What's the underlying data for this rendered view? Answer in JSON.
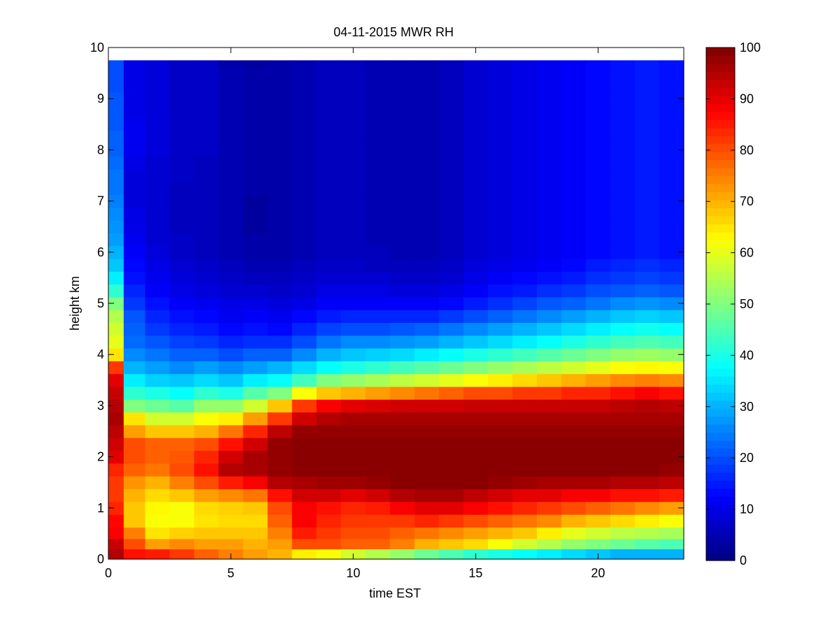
{
  "chart_data": {
    "type": "heatmap",
    "title": "04-11-2015 MWR RH",
    "xlabel": "time EST",
    "ylabel": "height km",
    "xlim": [
      0,
      23.5
    ],
    "ylim": [
      0,
      10
    ],
    "xticks": [
      0,
      5,
      10,
      15,
      20
    ],
    "yticks": [
      0,
      1,
      2,
      3,
      4,
      5,
      6,
      7,
      8,
      9,
      10
    ],
    "colorbar": {
      "min": 0,
      "max": 100,
      "ticks": [
        0,
        10,
        20,
        30,
        40,
        50,
        60,
        70,
        80,
        90,
        100
      ],
      "colormap": "jet"
    },
    "grid": false,
    "time_hours": [
      0.25,
      1,
      2,
      3,
      4,
      5,
      6,
      7,
      8,
      9,
      10,
      11,
      12,
      13,
      14,
      15,
      16,
      17,
      18,
      19,
      20,
      21,
      22,
      23
    ],
    "heights_km": [
      0.1,
      0.3,
      0.5,
      0.75,
      1.0,
      1.25,
      1.5,
      1.75,
      2.0,
      2.25,
      2.5,
      2.75,
      3.0,
      3.25,
      3.5,
      3.75,
      4.0,
      4.25,
      4.5,
      4.75,
      5.0,
      5.25,
      5.5,
      5.75,
      6.0,
      6.25,
      6.5,
      6.75,
      7.0,
      7.25,
      7.5,
      7.75,
      8.0,
      8.25,
      8.5,
      8.75,
      9.0,
      9.25,
      9.5,
      9.75
    ],
    "rh_percent_profiles": [
      [
        95,
        93,
        88,
        87,
        84,
        82,
        82,
        84,
        90,
        92,
        94,
        96,
        95,
        93,
        90,
        82,
        65,
        60,
        58,
        55,
        50,
        42,
        36,
        32,
        30,
        28,
        27,
        26,
        25,
        24,
        24,
        23,
        22,
        22,
        21,
        21,
        21,
        20,
        20,
        20
      ],
      [
        86,
        80,
        75,
        68,
        68,
        70,
        73,
        78,
        80,
        80,
        72,
        65,
        50,
        42,
        36,
        30,
        26,
        23,
        22,
        21,
        18,
        16,
        14,
        13,
        12,
        11,
        10,
        10,
        9,
        9,
        9,
        10,
        11,
        11,
        11,
        10,
        10,
        10,
        10,
        10
      ],
      [
        85,
        72,
        65,
        62,
        63,
        66,
        70,
        76,
        78,
        78,
        68,
        58,
        48,
        40,
        33,
        28,
        24,
        21,
        18,
        16,
        14,
        12,
        11,
        10,
        9,
        8,
        8,
        8,
        8,
        8,
        8,
        8,
        9,
        9,
        9,
        9,
        9,
        9,
        9,
        9
      ],
      [
        82,
        74,
        67,
        62,
        62,
        68,
        75,
        80,
        79,
        78,
        68,
        58,
        46,
        38,
        32,
        26,
        22,
        19,
        16,
        14,
        12,
        10,
        9,
        8,
        7,
        7,
        6,
        6,
        6,
        6,
        7,
        7,
        7,
        7,
        7,
        7,
        7,
        7,
        7,
        7
      ],
      [
        78,
        72,
        68,
        65,
        66,
        72,
        80,
        86,
        84,
        80,
        70,
        62,
        52,
        42,
        34,
        28,
        22,
        18,
        15,
        13,
        11,
        9,
        8,
        7,
        6,
        6,
        6,
        6,
        6,
        6,
        6,
        6,
        7,
        7,
        7,
        7,
        7,
        7,
        7,
        7
      ],
      [
        75,
        72,
        68,
        66,
        67,
        74,
        85,
        95,
        92,
        86,
        76,
        64,
        52,
        40,
        32,
        26,
        20,
        16,
        13,
        11,
        10,
        8,
        7,
        6,
        5,
        5,
        5,
        5,
        5,
        5,
        5,
        5,
        5,
        5,
        5,
        5,
        5,
        5,
        5,
        4
      ],
      [
        72,
        70,
        68,
        66,
        68,
        76,
        88,
        96,
        96,
        92,
        84,
        72,
        58,
        46,
        36,
        28,
        22,
        17,
        14,
        12,
        10,
        8,
        6,
        5,
        4,
        4,
        3,
        3,
        3,
        4,
        4,
        4,
        4,
        4,
        4,
        4,
        4,
        4,
        4,
        3
      ],
      [
        70,
        72,
        75,
        78,
        80,
        86,
        95,
        98,
        98,
        98,
        94,
        82,
        68,
        50,
        38,
        30,
        22,
        17,
        13,
        11,
        9,
        7,
        6,
        5,
        4,
        4,
        4,
        4,
        4,
        4,
        4,
        4,
        4,
        4,
        4,
        4,
        4,
        4,
        4,
        4
      ],
      [
        64,
        80,
        85,
        88,
        88,
        92,
        96,
        99,
        99,
        99,
        98,
        92,
        82,
        62,
        44,
        34,
        26,
        20,
        16,
        13,
        10,
        8,
        7,
        6,
        5,
        5,
        5,
        5,
        5,
        5,
        5,
        5,
        5,
        5,
        5,
        5,
        5,
        5,
        5,
        5
      ],
      [
        62,
        80,
        82,
        84,
        86,
        92,
        97,
        99,
        99,
        99,
        98,
        95,
        88,
        68,
        50,
        38,
        30,
        24,
        19,
        15,
        12,
        10,
        8,
        7,
        6,
        6,
        6,
        6,
        6,
        6,
        6,
        6,
        6,
        6,
        6,
        6,
        6,
        6,
        6,
        6
      ],
      [
        58,
        78,
        80,
        82,
        84,
        90,
        97,
        99,
        99,
        99,
        98,
        96,
        90,
        70,
        52,
        40,
        32,
        26,
        20,
        16,
        12,
        10,
        8,
        7,
        6,
        6,
        6,
        6,
        6,
        6,
        6,
        6,
        6,
        6,
        6,
        6,
        6,
        6,
        6,
        6
      ],
      [
        55,
        78,
        80,
        82,
        85,
        92,
        98,
        99,
        99,
        99,
        98,
        96,
        91,
        72,
        54,
        42,
        33,
        26,
        20,
        16,
        12,
        10,
        8,
        6,
        6,
        5,
        5,
        5,
        5,
        5,
        5,
        5,
        5,
        5,
        5,
        5,
        5,
        5,
        5,
        5
      ],
      [
        52,
        75,
        78,
        82,
        88,
        95,
        99,
        99,
        99,
        99,
        98,
        96,
        92,
        74,
        56,
        44,
        34,
        27,
        21,
        16,
        12,
        9,
        7,
        6,
        5,
        5,
        5,
        5,
        5,
        5,
        5,
        5,
        5,
        5,
        5,
        5,
        5,
        5,
        5,
        5
      ],
      [
        48,
        70,
        76,
        84,
        90,
        96,
        99,
        99,
        99,
        99,
        98,
        96,
        92,
        76,
        58,
        46,
        36,
        28,
        22,
        16,
        12,
        9,
        7,
        6,
        5,
        5,
        5,
        5,
        5,
        5,
        5,
        5,
        5,
        5,
        5,
        5,
        5,
        5,
        5,
        5
      ],
      [
        45,
        68,
        74,
        82,
        90,
        96,
        99,
        99,
        99,
        99,
        98,
        96,
        92,
        78,
        60,
        48,
        38,
        30,
        24,
        18,
        13,
        10,
        8,
        7,
        6,
        6,
        6,
        6,
        6,
        6,
        6,
        6,
        6,
        6,
        6,
        6,
        6,
        6,
        6,
        6
      ],
      [
        42,
        66,
        72,
        80,
        88,
        94,
        99,
        99,
        99,
        99,
        98,
        96,
        93,
        80,
        62,
        50,
        40,
        32,
        26,
        20,
        15,
        12,
        10,
        9,
        8,
        8,
        8,
        8,
        8,
        8,
        8,
        8,
        8,
        8,
        8,
        8,
        8,
        8,
        8,
        8
      ],
      [
        40,
        62,
        70,
        78,
        86,
        92,
        98,
        99,
        99,
        99,
        98,
        96,
        93,
        80,
        64,
        52,
        42,
        34,
        28,
        22,
        17,
        14,
        12,
        10,
        9,
        9,
        9,
        9,
        9,
        9,
        9,
        9,
        9,
        9,
        9,
        9,
        9,
        9,
        9,
        9
      ],
      [
        38,
        58,
        68,
        76,
        84,
        90,
        97,
        99,
        99,
        99,
        98,
        96,
        93,
        82,
        66,
        54,
        44,
        36,
        30,
        24,
        19,
        15,
        13,
        11,
        10,
        10,
        10,
        10,
        10,
        10,
        10,
        10,
        10,
        10,
        10,
        10,
        10,
        10,
        10,
        10
      ],
      [
        36,
        55,
        64,
        74,
        82,
        90,
        96,
        99,
        99,
        99,
        98,
        96,
        93,
        82,
        68,
        56,
        46,
        38,
        32,
        26,
        21,
        17,
        14,
        12,
        11,
        11,
        11,
        11,
        11,
        11,
        11,
        11,
        11,
        11,
        11,
        11,
        11,
        11,
        11,
        11
      ],
      [
        34,
        52,
        60,
        70,
        80,
        88,
        96,
        99,
        99,
        99,
        98,
        96,
        93,
        84,
        70,
        58,
        48,
        40,
        34,
        28,
        22,
        18,
        15,
        13,
        12,
        12,
        12,
        12,
        12,
        12,
        12,
        12,
        12,
        12,
        12,
        12,
        12,
        12,
        12,
        12
      ],
      [
        32,
        50,
        58,
        68,
        78,
        88,
        96,
        99,
        99,
        99,
        98,
        96,
        93,
        84,
        72,
        60,
        50,
        42,
        36,
        30,
        24,
        20,
        17,
        15,
        13,
        13,
        13,
        13,
        13,
        13,
        13,
        13,
        13,
        13,
        13,
        13,
        13,
        13,
        13,
        13
      ],
      [
        30,
        48,
        56,
        66,
        76,
        86,
        95,
        99,
        99,
        99,
        98,
        96,
        94,
        86,
        74,
        62,
        52,
        44,
        38,
        32,
        26,
        21,
        18,
        16,
        14,
        14,
        14,
        14,
        14,
        14,
        14,
        14,
        14,
        14,
        14,
        14,
        14,
        14,
        14,
        14
      ],
      [
        30,
        46,
        55,
        64,
        74,
        86,
        95,
        99,
        99,
        99,
        98,
        96,
        95,
        88,
        75,
        63,
        53,
        45,
        39,
        33,
        27,
        22,
        19,
        17,
        15,
        15,
        15,
        15,
        15,
        15,
        15,
        15,
        15,
        15,
        15,
        15,
        15,
        15,
        15,
        15
      ],
      [
        30,
        45,
        54,
        62,
        72,
        85,
        94,
        98,
        99,
        99,
        98,
        96,
        94,
        86,
        74,
        62,
        52,
        44,
        38,
        32,
        26,
        21,
        18,
        16,
        14,
        14,
        14,
        14,
        14,
        14,
        14,
        14,
        14,
        14,
        14,
        14,
        14,
        14,
        14,
        14
      ]
    ]
  }
}
